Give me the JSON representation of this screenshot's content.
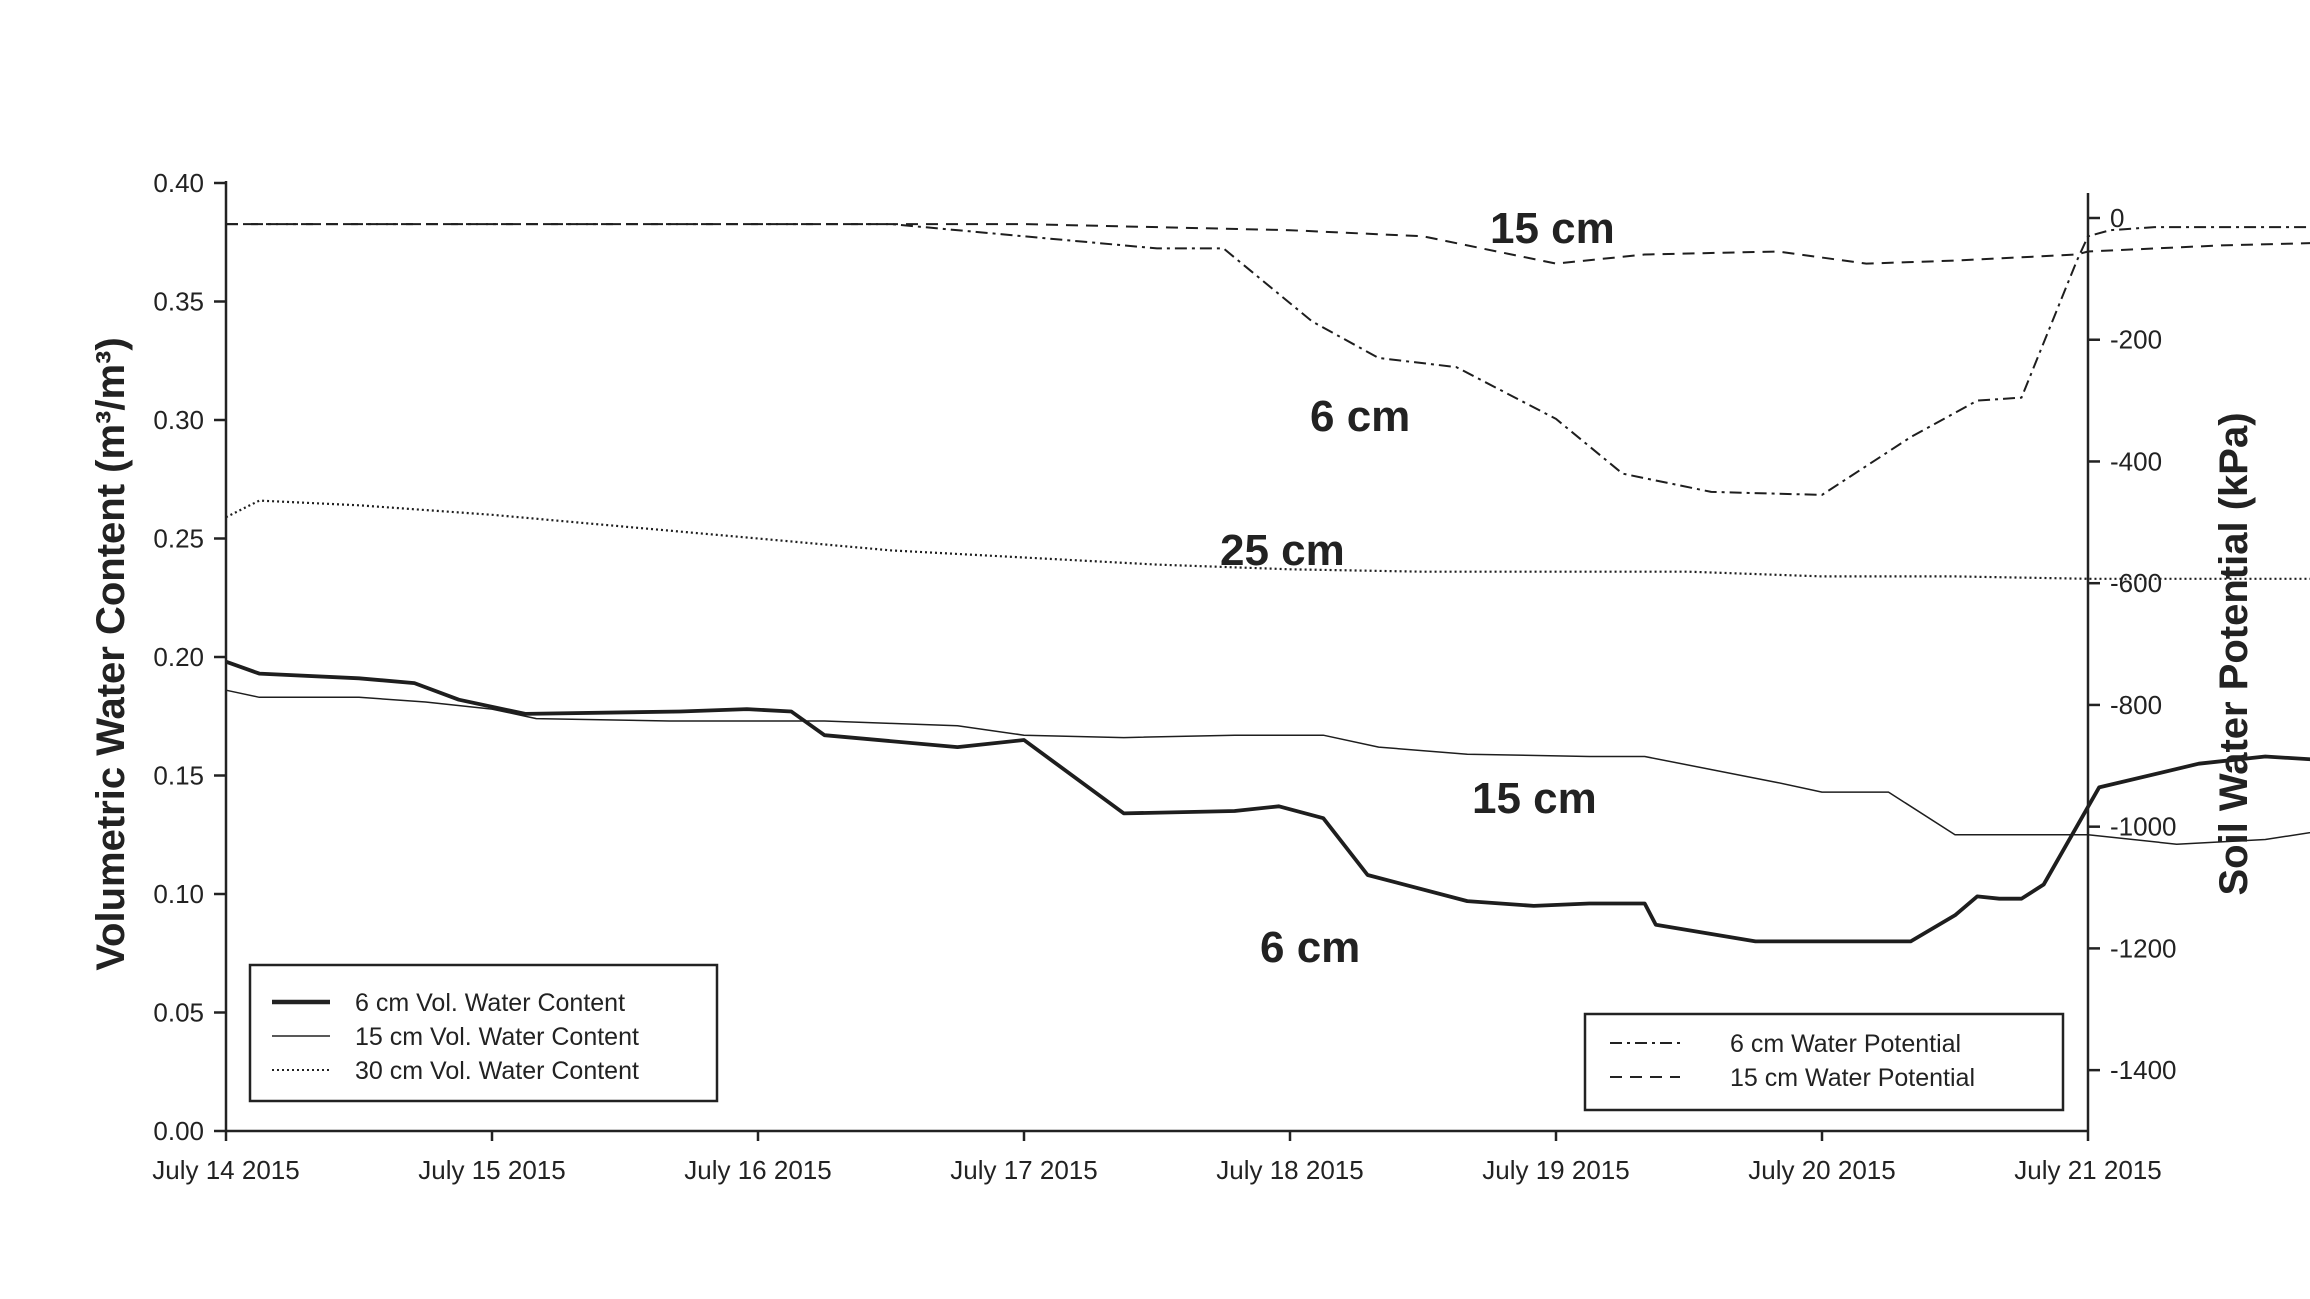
{
  "chart_data": {
    "type": "line",
    "x_axis": {
      "tick_labels": [
        "July 14 2015",
        "July 15 2015",
        "July 16 2015",
        "July 17 2015",
        "July 18 2015",
        "July 19 2015",
        "July 20 2015",
        "July 21 2015"
      ],
      "range_days": [
        0,
        7
      ]
    },
    "y_left": {
      "label": "Volumetric Water Content (m³/m³)",
      "ylim": [
        0.0,
        0.4
      ],
      "ticks": [
        0.0,
        0.05,
        0.1,
        0.15,
        0.2,
        0.25,
        0.3,
        0.35,
        0.4
      ],
      "tick_labels": [
        "0.00",
        "0.05",
        "0.10",
        "0.15",
        "0.20",
        "0.25",
        "0.30",
        "0.35",
        "0.40"
      ]
    },
    "y_right": {
      "label": "Soil Water Potential (kPa)",
      "ylim": [
        -1500,
        0
      ],
      "ticks": [
        0,
        -200,
        -400,
        -600,
        -800,
        -1000,
        -1200,
        -1400
      ],
      "tick_labels": [
        "0",
        "-200",
        "-400",
        "-600",
        "-800",
        "-1000",
        "-1200",
        "-1400"
      ]
    },
    "grid": false,
    "series": [
      {
        "name": "6 cm Vol. Water Content",
        "axis": "left",
        "style": "solid-thick",
        "x": [
          "July 14 2015 00:00",
          "July 14 2015 03:00",
          "July 14 2015 12:00",
          "July 14 2015 17:00",
          "July 14 2015 21:00",
          "July 15 2015 03:00",
          "July 15 2015 17:00",
          "July 15 2015 23:00",
          "July 16 2015 03:00",
          "July 16 2015 06:00",
          "July 16 2015 18:00",
          "July 17 2015 00:00",
          "July 17 2015 09:00",
          "July 17 2015 19:00",
          "July 17 2015 23:00",
          "July 18 2015 03:00",
          "July 18 2015 07:00",
          "July 18 2015 16:00",
          "July 18 2015 22:00",
          "July 19 2015 03:00",
          "July 19 2015 08:00",
          "July 19 2015 09:00",
          "July 19 2015 18:00",
          "July 20 2015 00:00",
          "July 20 2015 08:00",
          "July 20 2015 12:00",
          "July 20 2015 14:00",
          "July 20 2015 16:00",
          "July 20 2015 18:00",
          "July 20 2015 20:00",
          "July 21 2015 01:00",
          "July 21 2015 10:00",
          "July 21 2015 16:00",
          "July 21 2015 23:00"
        ],
        "values": [
          0.198,
          0.193,
          0.191,
          0.189,
          0.182,
          0.176,
          0.177,
          0.178,
          0.177,
          0.167,
          0.162,
          0.165,
          0.134,
          0.135,
          0.137,
          0.132,
          0.108,
          0.097,
          0.095,
          0.096,
          0.096,
          0.087,
          0.08,
          0.08,
          0.08,
          0.091,
          0.099,
          0.098,
          0.098,
          0.104,
          0.145,
          0.155,
          0.158,
          0.156
        ]
      },
      {
        "name": "15 cm Vol. Water Content",
        "axis": "left",
        "style": "solid-thin",
        "x": [
          "July 14 2015 00:00",
          "July 14 2015 03:00",
          "July 14 2015 12:00",
          "July 14 2015 18:00",
          "July 15 2015 00:00",
          "July 15 2015 04:00",
          "July 15 2015 16:00",
          "July 16 2015 00:00",
          "July 16 2015 06:00",
          "July 16 2015 12:00",
          "July 16 2015 18:00",
          "July 17 2015 00:00",
          "July 17 2015 09:00",
          "July 17 2015 19:00",
          "July 18 2015 03:00",
          "July 18 2015 08:00",
          "July 18 2015 16:00",
          "July 19 2015 03:00",
          "July 19 2015 08:00",
          "July 19 2015 20:00",
          "July 20 2015 00:00",
          "July 20 2015 06:00",
          "July 20 2015 12:00",
          "July 21 2015 00:00",
          "July 21 2015 08:00",
          "July 21 2015 16:00",
          "July 21 2015 23:00"
        ],
        "values": [
          0.186,
          0.183,
          0.183,
          0.181,
          0.178,
          0.174,
          0.173,
          0.173,
          0.173,
          0.172,
          0.171,
          0.167,
          0.166,
          0.167,
          0.167,
          0.162,
          0.159,
          0.158,
          0.158,
          0.147,
          0.143,
          0.143,
          0.125,
          0.125,
          0.121,
          0.123,
          0.128
        ]
      },
      {
        "name": "30 cm Vol. Water Content",
        "axis": "left",
        "style": "dotted",
        "x": [
          "July 14 2015 00:00",
          "July 14 2015 03:00",
          "July 14 2015 12:00",
          "July 15 2015 00:00",
          "July 15 2015 12:00",
          "July 16 2015 00:00",
          "July 16 2015 12:00",
          "July 17 2015 00:00",
          "July 17 2015 12:00",
          "July 18 2015 00:00",
          "July 18 2015 12:00",
          "July 19 2015 00:00",
          "July 19 2015 12:00",
          "July 20 2015 00:00",
          "July 20 2015 12:00",
          "July 21 2015 00:00",
          "July 21 2015 12:00",
          "July 21 2015 23:00"
        ],
        "values": [
          0.259,
          0.266,
          0.264,
          0.26,
          0.255,
          0.25,
          0.245,
          0.242,
          0.239,
          0.237,
          0.236,
          0.236,
          0.236,
          0.234,
          0.234,
          0.233,
          0.233,
          0.233
        ]
      },
      {
        "name": "6 cm Water Potential",
        "axis": "right",
        "style": "dash-dot",
        "x": [
          "July 14 2015 00:00",
          "July 16 2015 12:00",
          "July 17 2015 00:00",
          "July 17 2015 12:00",
          "July 17 2015 18:00",
          "July 18 2015 02:00",
          "July 18 2015 08:00",
          "July 18 2015 15:00",
          "July 19 2015 00:00",
          "July 19 2015 06:00",
          "July 19 2015 14:00",
          "July 20 2015 00:00",
          "July 20 2015 08:00",
          "July 20 2015 14:00",
          "July 20 2015 18:00",
          "July 20 2015 23:00",
          "July 21 2015 00:00",
          "July 21 2015 02:00",
          "July 21 2015 06:00",
          "July 21 2015 12:00",
          "July 21 2015 23:00"
        ],
        "values": [
          -10,
          -10,
          -30,
          -50,
          -50,
          -170,
          -230,
          -245,
          -330,
          -420,
          -450,
          -455,
          -360,
          -300,
          -295,
          -70,
          -30,
          -20,
          -15,
          -15,
          -15
        ]
      },
      {
        "name": "15 cm Water Potential",
        "axis": "right",
        "style": "dashed",
        "x": [
          "July 14 2015 00:00",
          "July 17 2015 00:00",
          "July 18 2015 00:00",
          "July 18 2015 12:00",
          "July 19 2015 00:00",
          "July 19 2015 08:00",
          "July 19 2015 20:00",
          "July 20 2015 04:00",
          "July 20 2015 12:00",
          "July 20 2015 23:00",
          "July 21 2015 00:00",
          "July 21 2015 12:00",
          "July 21 2015 23:00"
        ],
        "values": [
          -10,
          -10,
          -20,
          -30,
          -75,
          -60,
          -55,
          -75,
          -70,
          -60,
          -55,
          -45,
          -40
        ]
      }
    ],
    "annotations": [
      "15 cm",
      "6 cm",
      "25 cm",
      "15 cm",
      "6 cm"
    ],
    "legend_left": {
      "placement": "bottom-left",
      "entries": [
        "6 cm Vol. Water Content",
        "15 cm Vol. Water Content",
        "30 cm Vol. Water Content"
      ]
    },
    "legend_right": {
      "placement": "bottom-right",
      "entries": [
        "6 cm Water Potential",
        "15 cm Water Potential"
      ]
    }
  }
}
